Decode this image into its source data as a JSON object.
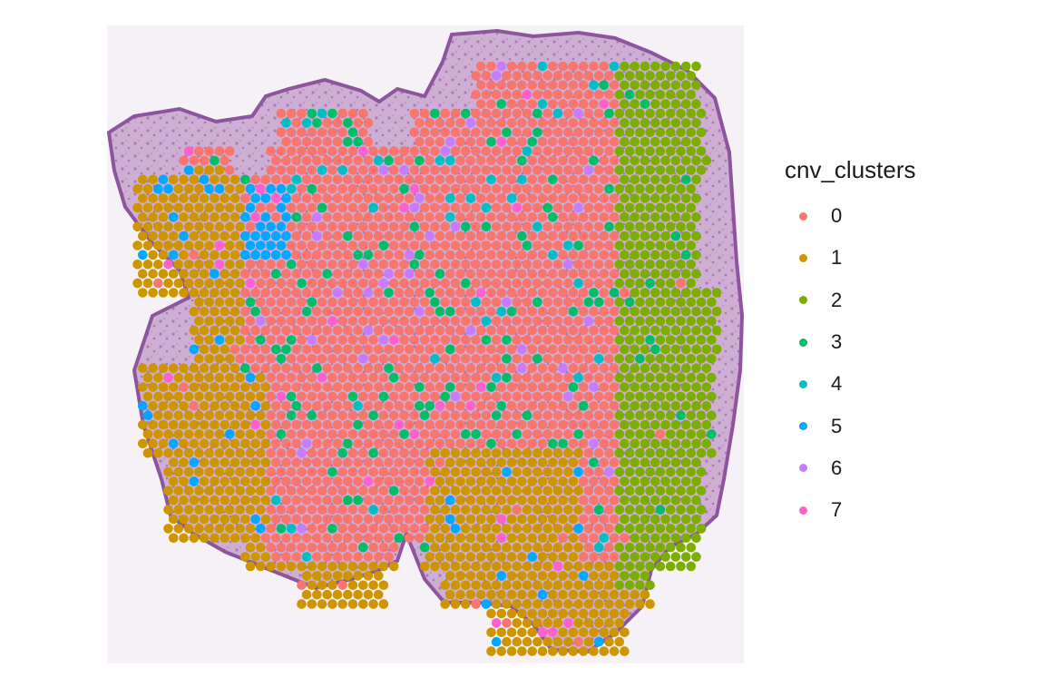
{
  "chart_data": {
    "type": "scatter",
    "title": "",
    "xlabel": "",
    "ylabel": "",
    "background": "H&E tissue section image",
    "legend": {
      "title": "cnv_clusters",
      "position": "right",
      "items": [
        {
          "label": "0",
          "color": "#F8766D"
        },
        {
          "label": "1",
          "color": "#CD9600"
        },
        {
          "label": "2",
          "color": "#7CAE00"
        },
        {
          "label": "3",
          "color": "#00BE67"
        },
        {
          "label": "4",
          "color": "#00BFC4"
        },
        {
          "label": "5",
          "color": "#00A9FF"
        },
        {
          "label": "6",
          "color": "#C77CFF"
        },
        {
          "label": "7",
          "color": "#FF61CC"
        }
      ]
    },
    "grid": false
  }
}
